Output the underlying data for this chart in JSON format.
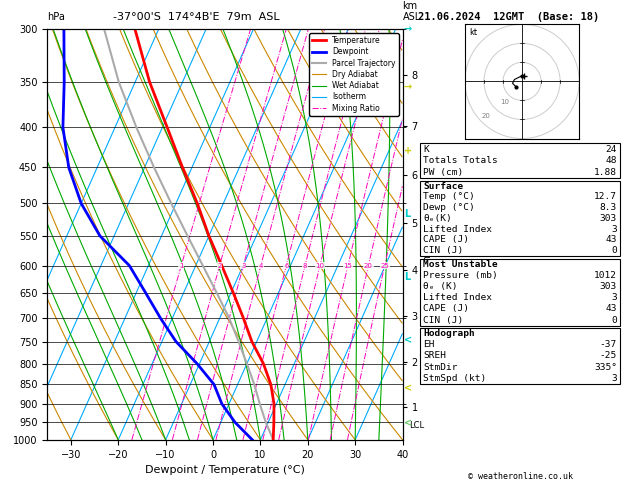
{
  "title_left": "-37°00'S  174°4B'E  79m  ASL",
  "title_right": "21.06.2024  12GMT  (Base: 18)",
  "hpa_label": "hPa",
  "km_label": "km\nASL",
  "xlabel": "Dewpoint / Temperature (°C)",
  "pressure_ticks": [
    300,
    350,
    400,
    450,
    500,
    550,
    600,
    650,
    700,
    750,
    800,
    850,
    900,
    950,
    1000
  ],
  "temp_range": [
    -35,
    40
  ],
  "temp_ticks": [
    -30,
    -20,
    -10,
    0,
    10,
    20,
    30,
    40
  ],
  "km_ticks": [
    1,
    2,
    3,
    4,
    5,
    6,
    7,
    8
  ],
  "km_pressures": [
    908,
    795,
    696,
    608,
    530,
    460,
    398,
    343
  ],
  "lcl_pressure": 960,
  "mixing_ratio_lines": [
    1,
    2,
    3,
    4,
    6,
    8,
    10,
    15,
    20,
    25
  ],
  "temperature_profile": {
    "pressure": [
      1000,
      950,
      900,
      850,
      800,
      750,
      700,
      650,
      600,
      550,
      500,
      450,
      400,
      350,
      300
    ],
    "temp": [
      12.7,
      11.2,
      9.5,
      7.0,
      3.5,
      -1.0,
      -5.0,
      -9.5,
      -14.5,
      -20.0,
      -25.5,
      -32.0,
      -39.0,
      -47.0,
      -55.0
    ]
  },
  "dewpoint_profile": {
    "pressure": [
      1000,
      950,
      900,
      850,
      800,
      750,
      700,
      650,
      600,
      550,
      500,
      450,
      400,
      350,
      300
    ],
    "temp": [
      8.3,
      3.0,
      -1.5,
      -5.0,
      -10.5,
      -17.0,
      -22.5,
      -28.0,
      -34.0,
      -43.0,
      -50.0,
      -56.0,
      -61.0,
      -65.0,
      -70.0
    ]
  },
  "parcel_trajectory": {
    "pressure": [
      1000,
      950,
      900,
      850,
      800,
      750,
      700,
      650,
      600,
      550,
      500,
      450,
      400,
      350,
      300
    ],
    "temp": [
      12.7,
      9.5,
      6.5,
      3.5,
      0.0,
      -3.8,
      -8.0,
      -13.0,
      -18.5,
      -24.5,
      -31.0,
      -38.0,
      -45.5,
      -53.5,
      -61.5
    ]
  },
  "skew_factor": 32,
  "legend_items": [
    {
      "label": "Temperature",
      "color": "#ff0000",
      "linestyle": "-",
      "lw": 2.0
    },
    {
      "label": "Dewpoint",
      "color": "#0000ff",
      "linestyle": "-",
      "lw": 2.0
    },
    {
      "label": "Parcel Trajectory",
      "color": "#aaaaaa",
      "linestyle": "-",
      "lw": 1.5
    },
    {
      "label": "Dry Adiabat",
      "color": "#cc8800",
      "linestyle": "-",
      "lw": 0.8
    },
    {
      "label": "Wet Adiabat",
      "color": "#00aa00",
      "linestyle": "-",
      "lw": 0.8
    },
    {
      "label": "Isotherm",
      "color": "#00aaff",
      "linestyle": "-",
      "lw": 0.8
    },
    {
      "label": "Mixing Ratio",
      "color": "#ff00bb",
      "linestyle": "-.",
      "lw": 0.7
    }
  ],
  "stats": {
    "K": 24,
    "Totals_Totals": 48,
    "PW_cm": "1.88",
    "Surface_Temp": "12.7",
    "Surface_Dewp": "8.3",
    "Surface_ThetaE": 303,
    "Surface_LiftedIndex": 3,
    "Surface_CAPE": 43,
    "Surface_CIN": 0,
    "MU_Pressure": 1012,
    "MU_ThetaE": 303,
    "MU_LiftedIndex": 3,
    "MU_CAPE": 43,
    "MU_CIN": 0,
    "Hodo_EH": -37,
    "Hodo_SREH": -25,
    "Hodo_StmDir": "335°",
    "Hodo_StmSpd": 3
  },
  "bg_color": "#ffffff",
  "isotherm_color": "#00aaff",
  "dry_adiabat_color": "#cc8800",
  "wet_adiabat_color": "#00aa00",
  "mixing_ratio_color": "#ff00bb",
  "temp_color": "#ff0000",
  "dewp_color": "#0000ff",
  "parcel_color": "#aaaaaa"
}
